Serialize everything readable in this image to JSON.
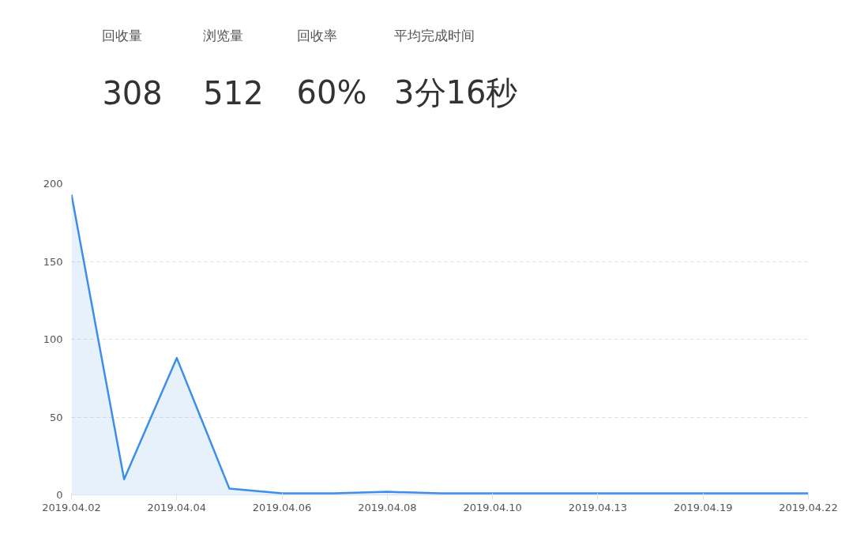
{
  "chart_data": [
    {
      "type": "other",
      "annotations": [
        "回收量",
        "308",
        "浏览量",
        "512",
        "回收率",
        "60%",
        "平均完成时间",
        "3分16秒"
      ]
    },
    {
      "type": "area",
      "categories": [
        "2019.04.02",
        null,
        "2019.04.04",
        null,
        "2019.04.06",
        null,
        "2019.04.08",
        null,
        "2019.04.10",
        null,
        "2019.04.13",
        null,
        "2019.04.19",
        null,
        "2019.04.22"
      ],
      "series": [
        {
          "color": "#3d8ee8",
          "values": [
            193,
            10,
            88,
            4,
            1,
            1,
            2,
            1,
            1,
            1,
            1,
            1,
            1,
            1,
            1
          ]
        }
      ],
      "ylim": [
        0,
        200
      ],
      "yticks": [
        0,
        50,
        100,
        150,
        200
      ],
      "grid": "y",
      "marker": "none",
      "line_style": "solid"
    }
  ]
}
